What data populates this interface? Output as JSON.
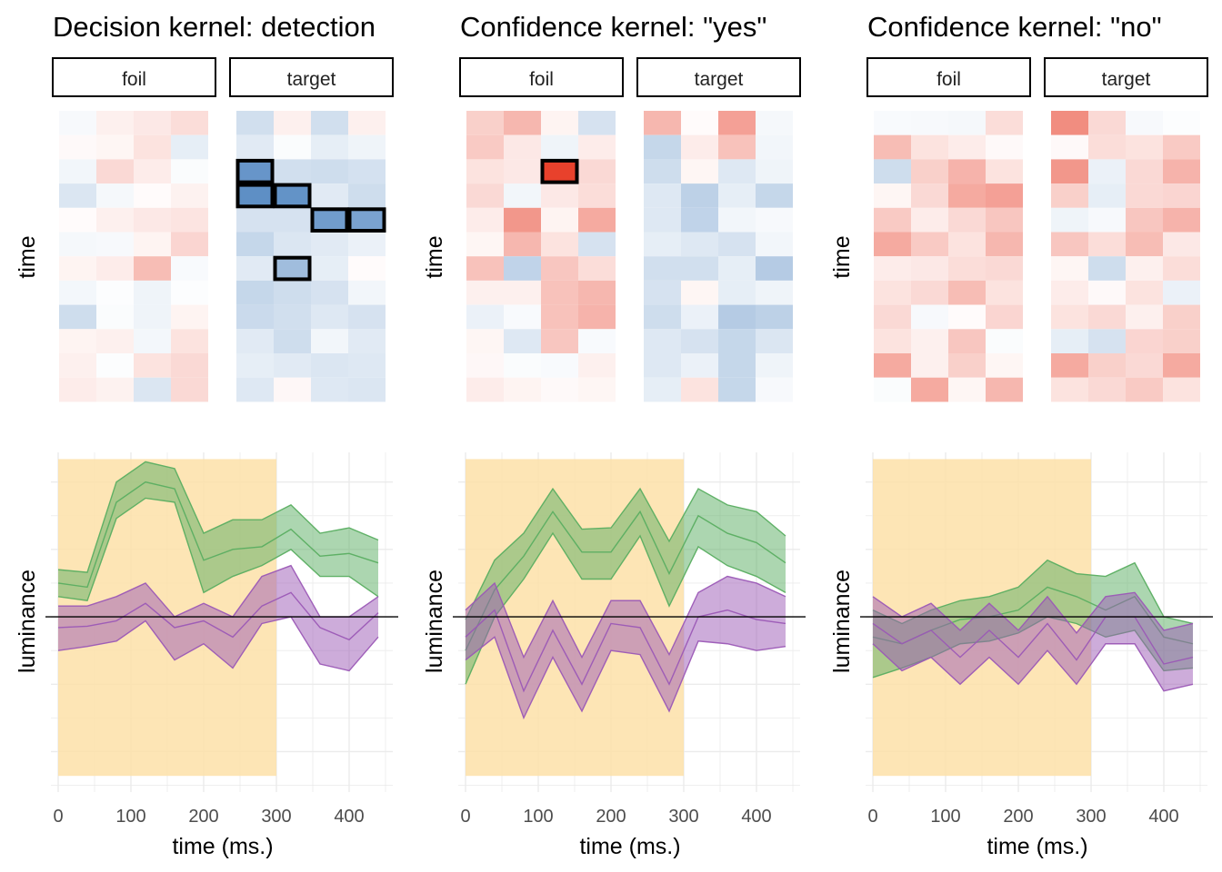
{
  "panels": [
    {
      "title": "Decision kernel: detection",
      "facet_labels": [
        "foil",
        "target"
      ],
      "heatmap_ylabel": "time",
      "line_ylabel": "luminance",
      "line_xlabel": "time (ms.)"
    },
    {
      "title": "Confidence kernel: \"yes\"",
      "facet_labels": [
        "foil",
        "target"
      ],
      "heatmap_ylabel": "time",
      "line_ylabel": "luminance",
      "line_xlabel": "time (ms.)"
    },
    {
      "title": "Confidence kernel: \"no\"",
      "facet_labels": [
        "foil",
        "target"
      ],
      "heatmap_ylabel": "time",
      "line_ylabel": "luminance",
      "line_xlabel": "time (ms.)"
    }
  ],
  "colors": {
    "pos": "#e8412c",
    "neg": "#5a8cc4",
    "green": "#5aae61",
    "purple": "#9b59b6",
    "window": "#fde0a8",
    "grid": "#ebebeb"
  },
  "chart_data": [
    {
      "type": "heatmap",
      "title": "Decision kernel: detection",
      "ylabel": "time",
      "facets": [
        "foil",
        "target"
      ],
      "rows": 12,
      "cols": 4,
      "foil": [
        [
          -0.05,
          0.08,
          0.12,
          0.18
        ],
        [
          0.03,
          0.05,
          0.15,
          -0.15
        ],
        [
          -0.08,
          0.2,
          0.1,
          -0.03
        ],
        [
          -0.22,
          -0.06,
          0.02,
          0.07
        ],
        [
          0.02,
          0.08,
          0.12,
          0.14
        ],
        [
          -0.06,
          -0.05,
          0.06,
          0.22
        ],
        [
          0.06,
          0.1,
          0.35,
          -0.04
        ],
        [
          -0.07,
          -0.02,
          -0.1,
          -0.02
        ],
        [
          -0.3,
          -0.03,
          -0.1,
          0.06
        ],
        [
          0.06,
          0.08,
          -0.07,
          0.15
        ],
        [
          0.08,
          -0.02,
          0.15,
          0.2
        ],
        [
          0.1,
          0.07,
          -0.22,
          0.2
        ]
      ],
      "target": [
        [
          -0.28,
          0.08,
          -0.28,
          0.08
        ],
        [
          -0.18,
          -0.03,
          -0.15,
          -0.1
        ],
        [
          -0.8,
          -0.28,
          -0.3,
          -0.26
        ],
        [
          -0.85,
          -0.82,
          -0.18,
          -0.3
        ],
        [
          -0.25,
          -0.25,
          -0.75,
          -0.7
        ],
        [
          -0.35,
          -0.22,
          -0.18,
          -0.12
        ],
        [
          -0.18,
          -0.5,
          -0.15,
          0.02
        ],
        [
          -0.35,
          -0.3,
          -0.25,
          -0.08
        ],
        [
          -0.32,
          -0.28,
          -0.2,
          -0.25
        ],
        [
          -0.18,
          -0.3,
          -0.08,
          -0.18
        ],
        [
          -0.15,
          -0.18,
          -0.22,
          -0.2
        ],
        [
          -0.2,
          0.04,
          -0.2,
          -0.22
        ]
      ],
      "highlighted_cells": {
        "foil": [],
        "target": [
          [
            2,
            0
          ],
          [
            3,
            0
          ],
          [
            3,
            1
          ],
          [
            4,
            2
          ],
          [
            4,
            3
          ],
          [
            6,
            1
          ]
        ]
      }
    },
    {
      "type": "heatmap",
      "title": "Confidence kernel: \"yes\"",
      "ylabel": "time",
      "facets": [
        "foil",
        "target"
      ],
      "rows": 12,
      "cols": 4,
      "foil": [
        [
          0.25,
          0.38,
          0.06,
          -0.25
        ],
        [
          0.28,
          0.12,
          -0.1,
          0.1
        ],
        [
          0.15,
          0.12,
          0.9,
          0.2
        ],
        [
          0.2,
          -0.08,
          0.12,
          0.18
        ],
        [
          0.1,
          0.55,
          0.06,
          0.45
        ],
        [
          0.05,
          0.38,
          0.15,
          -0.25
        ],
        [
          0.32,
          -0.38,
          0.3,
          0.18
        ],
        [
          0.08,
          0.08,
          0.32,
          0.38
        ],
        [
          -0.12,
          -0.04,
          0.32,
          0.4
        ],
        [
          0.05,
          -0.2,
          0.3,
          -0.04
        ],
        [
          0.04,
          -0.03,
          -0.04,
          0.08
        ],
        [
          0.1,
          0.06,
          0.03,
          0.05
        ]
      ],
      "target": [
        [
          0.38,
          0.02,
          0.5,
          -0.06
        ],
        [
          -0.35,
          0.1,
          0.32,
          -0.08
        ],
        [
          -0.3,
          0.05,
          -0.2,
          -0.1
        ],
        [
          -0.2,
          -0.4,
          -0.15,
          -0.35
        ],
        [
          -0.2,
          -0.38,
          -0.08,
          -0.05
        ],
        [
          -0.15,
          -0.2,
          -0.25,
          -0.08
        ],
        [
          -0.28,
          -0.28,
          -0.15,
          -0.45
        ],
        [
          -0.25,
          0.05,
          -0.15,
          -0.1
        ],
        [
          -0.3,
          -0.12,
          -0.45,
          -0.4
        ],
        [
          -0.2,
          -0.25,
          -0.35,
          -0.22
        ],
        [
          -0.2,
          -0.12,
          -0.35,
          -0.1
        ],
        [
          -0.15,
          0.15,
          -0.35,
          -0.05
        ]
      ],
      "highlighted_cells": {
        "foil": [
          [
            2,
            2
          ]
        ],
        "target": []
      }
    },
    {
      "type": "heatmap",
      "title": "Confidence kernel: \"no\"",
      "ylabel": "time",
      "facets": [
        "foil",
        "target"
      ],
      "rows": 12,
      "cols": 4,
      "foil": [
        [
          -0.04,
          -0.05,
          -0.06,
          0.18
        ],
        [
          0.35,
          0.15,
          0.1,
          0.03
        ],
        [
          -0.3,
          0.25,
          0.4,
          0.15
        ],
        [
          0.05,
          0.2,
          0.45,
          0.5
        ],
        [
          0.28,
          0.1,
          0.2,
          0.3
        ],
        [
          0.45,
          0.28,
          0.15,
          0.38
        ],
        [
          0.1,
          0.12,
          0.18,
          0.2
        ],
        [
          0.15,
          0.2,
          0.35,
          0.15
        ],
        [
          0.2,
          -0.05,
          0.02,
          0.22
        ],
        [
          0.15,
          0.08,
          0.3,
          -0.03
        ],
        [
          0.45,
          0.08,
          0.25,
          0.05
        ],
        [
          -0.03,
          0.45,
          0.05,
          0.38
        ]
      ],
      "target": [
        [
          0.6,
          0.2,
          -0.05,
          -0.02
        ],
        [
          0.03,
          0.18,
          0.15,
          0.28
        ],
        [
          0.55,
          -0.12,
          0.2,
          0.4
        ],
        [
          0.25,
          -0.15,
          0.2,
          0.22
        ],
        [
          -0.1,
          -0.05,
          0.3,
          0.4
        ],
        [
          0.3,
          0.18,
          0.35,
          0.12
        ],
        [
          0.05,
          -0.3,
          0.08,
          0.18
        ],
        [
          0.1,
          0.03,
          0.15,
          -0.12
        ],
        [
          0.15,
          0.2,
          0.08,
          0.25
        ],
        [
          -0.15,
          -0.25,
          0.22,
          0.25
        ],
        [
          0.45,
          0.25,
          0.2,
          0.45
        ],
        [
          0.15,
          0.2,
          0.28,
          0.15
        ]
      ],
      "highlighted_cells": {
        "foil": [],
        "target": []
      }
    },
    {
      "type": "area",
      "xlabel": "time (ms.)",
      "ylabel": "luminance",
      "x": [
        0,
        40,
        80,
        120,
        160,
        200,
        240,
        280,
        320,
        360,
        400,
        440
      ],
      "xlim": [
        -10,
        460
      ],
      "xticks": [
        0,
        100,
        200,
        300,
        400
      ],
      "ylim": [
        -1.3,
        1.22
      ],
      "reference_line_y": 0,
      "shaded_window_x": [
        0,
        300
      ],
      "series": [
        {
          "color": "green",
          "mean": [
            0.25,
            0.22,
            0.85,
            1.0,
            0.95,
            0.42,
            0.5,
            0.52,
            0.65,
            0.45,
            0.47,
            0.4
          ],
          "lower": [
            0.15,
            0.12,
            0.73,
            0.88,
            0.85,
            0.18,
            0.3,
            0.38,
            0.5,
            0.3,
            0.3,
            0.15
          ],
          "upper": [
            0.35,
            0.33,
            1.0,
            1.15,
            1.1,
            0.62,
            0.72,
            0.72,
            0.83,
            0.62,
            0.66,
            0.57
          ]
        },
        {
          "color": "purple",
          "mean": [
            -0.08,
            -0.07,
            -0.03,
            0.1,
            -0.08,
            -0.03,
            -0.15,
            0.08,
            0.18,
            -0.08,
            -0.17,
            0.03
          ],
          "lower": [
            -0.25,
            -0.22,
            -0.18,
            -0.03,
            -0.32,
            -0.2,
            -0.38,
            -0.05,
            0.0,
            -0.35,
            -0.4,
            -0.15
          ],
          "upper": [
            0.08,
            0.08,
            0.15,
            0.25,
            0.0,
            0.1,
            0.0,
            0.3,
            0.38,
            0.0,
            0.0,
            0.15
          ]
        }
      ]
    },
    {
      "type": "area",
      "xlabel": "time (ms.)",
      "ylabel": "luminance",
      "x": [
        0,
        40,
        80,
        120,
        160,
        200,
        240,
        280,
        320,
        360,
        400,
        440
      ],
      "xlim": [
        -10,
        460
      ],
      "xticks": [
        0,
        100,
        200,
        300,
        400
      ],
      "ylim": [
        -1.3,
        1.22
      ],
      "reference_line_y": 0,
      "shaded_window_x": [
        0,
        300
      ],
      "series": [
        {
          "color": "green",
          "mean": [
            -0.25,
            0.2,
            0.45,
            0.78,
            0.48,
            0.48,
            0.78,
            0.32,
            0.75,
            0.62,
            0.55,
            0.4
          ],
          "lower": [
            -0.5,
            0.0,
            0.28,
            0.62,
            0.28,
            0.28,
            0.6,
            0.08,
            0.52,
            0.38,
            0.3,
            0.18
          ],
          "upper": [
            -0.02,
            0.42,
            0.62,
            0.95,
            0.65,
            0.66,
            0.95,
            0.56,
            0.95,
            0.83,
            0.78,
            0.6
          ]
        },
        {
          "color": "purple",
          "mean": [
            -0.15,
            0.05,
            -0.55,
            -0.1,
            -0.5,
            -0.05,
            -0.08,
            -0.5,
            0.0,
            0.05,
            -0.02,
            -0.05
          ],
          "lower": [
            -0.32,
            -0.15,
            -0.75,
            -0.3,
            -0.7,
            -0.25,
            -0.28,
            -0.7,
            -0.18,
            -0.2,
            -0.25,
            -0.22
          ],
          "upper": [
            0.05,
            0.25,
            -0.3,
            0.12,
            -0.3,
            0.12,
            0.12,
            -0.28,
            0.18,
            0.3,
            0.25,
            0.15
          ]
        }
      ]
    },
    {
      "type": "area",
      "xlabel": "time (ms.)",
      "ylabel": "luminance",
      "x": [
        0,
        40,
        80,
        120,
        160,
        200,
        240,
        280,
        320,
        360,
        400,
        440
      ],
      "xlim": [
        -10,
        460
      ],
      "xticks": [
        0,
        100,
        200,
        300,
        400
      ],
      "ylim": [
        -1.3,
        1.22
      ],
      "reference_line_y": 0,
      "shaded_window_x": [
        0,
        300
      ],
      "series": [
        {
          "color": "green",
          "mean": [
            -0.15,
            -0.2,
            -0.1,
            -0.02,
            0.0,
            0.05,
            0.22,
            0.15,
            0.05,
            0.15,
            -0.15,
            -0.2
          ],
          "lower": [
            -0.45,
            -0.38,
            -0.3,
            -0.2,
            -0.18,
            -0.12,
            0.0,
            -0.05,
            -0.15,
            -0.1,
            -0.4,
            -0.38
          ],
          "upper": [
            0.05,
            -0.05,
            0.05,
            0.12,
            0.15,
            0.22,
            0.42,
            0.32,
            0.3,
            0.4,
            0.0,
            -0.05
          ]
        },
        {
          "color": "purple",
          "mean": [
            -0.05,
            -0.2,
            -0.1,
            -0.3,
            -0.1,
            -0.3,
            -0.05,
            -0.32,
            0.0,
            0.0,
            -0.35,
            -0.3
          ],
          "lower": [
            -0.2,
            -0.4,
            -0.3,
            -0.5,
            -0.3,
            -0.5,
            -0.25,
            -0.5,
            -0.2,
            -0.2,
            -0.55,
            -0.5
          ],
          "upper": [
            0.15,
            0.0,
            0.1,
            -0.1,
            0.1,
            -0.1,
            0.15,
            -0.12,
            0.15,
            0.18,
            -0.1,
            -0.05
          ]
        }
      ]
    }
  ]
}
